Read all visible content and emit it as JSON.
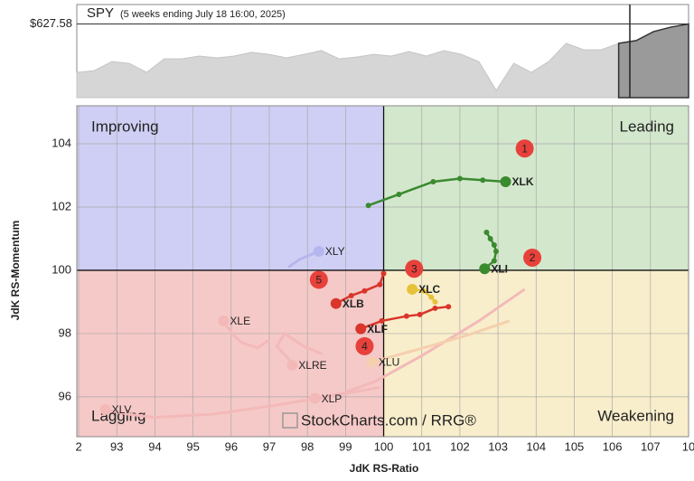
{
  "chart_data": [
    {
      "type": "area",
      "title": "SPY",
      "subtitle": "(5 weeks ending July 18 16:00, 2025)",
      "reference": {
        "value": 627.58,
        "label": "$627.58"
      },
      "values": [
        602.9,
        603.8,
        608.4,
        607.5,
        602.9,
        609.8,
        609.8,
        611.2,
        610.3,
        611.2,
        613.1,
        612.1,
        610.3,
        612.1,
        614.0,
        609.8,
        610.7,
        612.1,
        611.2,
        613.5,
        611.2,
        614.0,
        612.1,
        608.4,
        593.7,
        607.5,
        602.9,
        608.4,
        617.7,
        614.4,
        614.4,
        617.7,
        619.1,
        623.7,
        626.0,
        627.58
      ],
      "ylim": [
        590,
        637.5
      ],
      "color": "#d6d6d6"
    },
    {
      "type": "rrg",
      "x_label": "JdK RS-Ratio",
      "y_label": "JdK RS-Momentum",
      "quadrants": {
        "improving": "Improving",
        "leading": "Leading",
        "lagging": "Lagging",
        "weakening": "Weakening"
      },
      "watermark": "StockCharts.com / RRG®",
      "center": 100,
      "xlim": [
        91.95,
        108.0
      ],
      "ylim": [
        94.74,
        105.2
      ],
      "xticks": [
        {
          "value": 92,
          "label": "2"
        },
        93,
        94,
        95,
        96,
        97,
        98,
        99,
        100,
        101,
        102,
        103,
        104,
        105,
        106,
        107,
        {
          "value": 108,
          "label": "10"
        }
      ],
      "yticks": [
        96,
        98,
        100,
        102,
        104
      ],
      "grid": true,
      "annotations": [
        "1",
        "2",
        "3",
        "4",
        "5"
      ],
      "series": [
        {
          "name": "XLV",
          "color": "#f3b9b9",
          "x": [
            99.9,
            98.5,
            97.0,
            95.5,
            94.0,
            93.3,
            92.7
          ],
          "y": [
            96.3,
            96.0,
            95.7,
            95.45,
            95.35,
            95.45,
            95.6
          ]
        },
        {
          "name": "XLP",
          "color": "#f3b9b9",
          "x": [
            103.7,
            102.5,
            101.0,
            99.8,
            98.9,
            98.2
          ],
          "y": [
            99.4,
            98.4,
            97.3,
            96.5,
            96.1,
            95.95
          ]
        },
        {
          "name": "XLU",
          "color": "#f5cfae",
          "x": [
            103.3,
            102.2,
            101.2,
            100.3,
            99.7
          ],
          "y": [
            98.4,
            97.95,
            97.6,
            97.3,
            97.1
          ]
        },
        {
          "name": "XLRE",
          "color": "#f3b9b9",
          "x": [
            98.4,
            97.9,
            97.4,
            97.2,
            97.5,
            97.6
          ],
          "y": [
            97.35,
            97.6,
            98.0,
            97.6,
            97.2,
            97.0
          ]
        },
        {
          "name": "XLE",
          "color": "#f3b9b9",
          "x": [
            97.0,
            96.7,
            96.3,
            96.1,
            95.9,
            95.8
          ],
          "y": [
            97.8,
            97.55,
            97.7,
            97.9,
            98.2,
            98.4
          ]
        },
        {
          "name": "XLY",
          "color": "#b6b6ee",
          "x": [
            97.5,
            97.8,
            98.1,
            98.3
          ],
          "y": [
            100.1,
            100.35,
            100.5,
            100.6
          ]
        },
        {
          "name": "XLK",
          "color": "#3a8a2e",
          "x": [
            99.6,
            100.4,
            101.3,
            102.0,
            102.6,
            103.2
          ],
          "y": [
            102.05,
            102.4,
            102.8,
            102.9,
            102.85,
            102.8
          ]
        },
        {
          "name": "XLI",
          "color": "#3a8a2e",
          "x": [
            102.7,
            102.8,
            102.9,
            102.95,
            102.9,
            102.65
          ],
          "y": [
            101.2,
            101.0,
            100.8,
            100.6,
            100.3,
            100.05
          ]
        },
        {
          "name": "XLC",
          "color": "#e6c23a",
          "x": [
            101.35,
            101.25,
            101.05,
            100.75
          ],
          "y": [
            99.0,
            99.15,
            99.35,
            99.4
          ]
        },
        {
          "name": "XLB",
          "color": "#d9352a",
          "x": [
            100.0,
            99.9,
            99.5,
            99.15,
            98.75
          ],
          "y": [
            99.9,
            99.55,
            99.35,
            99.2,
            98.95
          ]
        },
        {
          "name": "XLF",
          "color": "#d9352a",
          "x": [
            101.7,
            101.35,
            100.95,
            100.6,
            99.95,
            99.4
          ],
          "y": [
            98.85,
            98.8,
            98.6,
            98.55,
            98.4,
            98.15
          ]
        }
      ]
    }
  ]
}
